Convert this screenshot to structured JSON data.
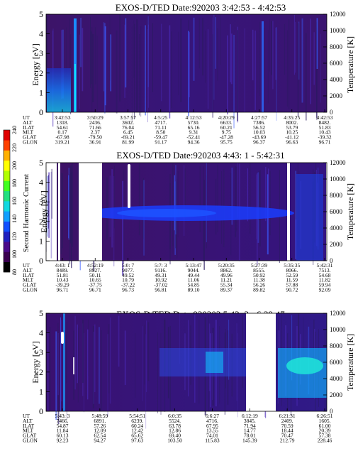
{
  "colorbar": {
    "label": "Second Harmonic Current",
    "ticks": [
      "240",
      "220",
      "200",
      "180",
      "160",
      "140",
      "120",
      "100",
      "80"
    ],
    "colors": [
      "#000000",
      "#3a0050",
      "#4a0a8a",
      "#2020c0",
      "#1050ff",
      "#10a0ff",
      "#10d8e0",
      "#20e080",
      "#40ff20",
      "#b0ff00",
      "#ffff00",
      "#ffb000",
      "#ff4000",
      "#e00000"
    ]
  },
  "chart_data": [
    {
      "type": "heatmap",
      "title": "EXOS-D/TED   Date:920203   3:42:53 - 4:42:53",
      "ylabel": "Energy [eV]",
      "ylabel_right": "Temperature [K]",
      "ylim": [
        0,
        5
      ],
      "ylim_right": [
        0,
        12000
      ],
      "yticks": [
        "0",
        "1",
        "2",
        "3",
        "4",
        "5"
      ],
      "yticks_right": [
        "0",
        "2000",
        "4000",
        "6000",
        "8000",
        "10000",
        "12000"
      ],
      "ephemeris_labels": [
        "UT",
        "ALT",
        "ILAT",
        "MLT",
        "GLAT",
        "GLON"
      ],
      "ephemeris": [
        [
          "3:42:53",
          "1318.",
          "54.61",
          "0.17",
          "-67.98",
          "319.21"
        ],
        [
          "3:50:29",
          "2436.",
          "71.66",
          "2.37",
          "-79.50",
          "36.91"
        ],
        [
          "3:57:57",
          "3602.",
          "76.04",
          "6.45",
          "-69.21",
          "81.99"
        ],
        [
          "4:5:25",
          "4717.",
          "71.11",
          "8.50",
          "-59.47",
          "91.17"
        ],
        [
          "4:12:53",
          "5730.",
          "65.16",
          "9.31",
          "-52.41",
          "94.36"
        ],
        [
          "4:20:29",
          "6633.",
          "60.21",
          "9.75",
          "-47.28",
          "95.75"
        ],
        [
          "4:27:57",
          "7386.",
          "56.52",
          "10.03",
          "-43.69",
          "96.37"
        ],
        [
          "4:35:25",
          "8002.",
          "53.79",
          "10.25",
          "-41.12",
          "96.63"
        ],
        [
          "4:42:53",
          "8482.",
          "51.83",
          "10.43",
          "-39.32",
          "96.71"
        ]
      ]
    },
    {
      "type": "heatmap",
      "title": "EXOS-D/TED   Date:920203  4:43: 1 - 5:42:31",
      "ylabel": "Energy [eV]",
      "ylabel_right": "Temperature [K]",
      "ylim": [
        0,
        5
      ],
      "ylim_right": [
        0,
        12000
      ],
      "yticks": [
        "0",
        "1",
        "2",
        "3",
        "4",
        "5"
      ],
      "yticks_right": [
        "0",
        "2000",
        "4000",
        "6000",
        "8000",
        "10000",
        "12000"
      ],
      "ephemeris_labels": [
        "UT",
        "ALT",
        "ILAT",
        "MLT",
        "GLAT",
        "GLON"
      ],
      "ephemeris": [
        [
          "4:43: 1",
          "8489.",
          "51.81",
          "10.43",
          "-39.29",
          "96.71"
        ],
        [
          "4:52:19",
          "8927.",
          "50.11",
          "10.65",
          "-37.75",
          "96.71"
        ],
        [
          "5:0: 7",
          "9077.",
          "49.52",
          "10.79",
          "-37.22",
          "96.73"
        ],
        [
          "5:7: 3",
          "9116.",
          "49.31",
          "10.92",
          "-37.02",
          "96.81"
        ],
        [
          "5:13:47",
          "9044.",
          "49.44",
          "11.06",
          "54.85",
          "89.10"
        ],
        [
          "5:20:35",
          "8862.",
          "49.96",
          "11.21",
          "55.34",
          "89.37"
        ],
        [
          "5:27:39",
          "8555.",
          "50.92",
          "11.38",
          "56.26",
          "89.82"
        ],
        [
          "5:35:35",
          "8066.",
          "52.59",
          "11.59",
          "57.88",
          "90.72"
        ],
        [
          "5:42:31",
          "7513.",
          "54.68",
          "11.82",
          "59.94",
          "92.09"
        ]
      ]
    },
    {
      "type": "heatmap",
      "title": "EXOS-D/TED   Date:920203   5:43: 3 - 6:29:47",
      "ylabel": "Energy [eV]",
      "ylabel_right": "Temperature [K]",
      "ylim": [
        0,
        5
      ],
      "ylim_right": [
        0,
        12000
      ],
      "yticks": [
        "0",
        "1",
        "2",
        "3",
        "4",
        "5"
      ],
      "yticks_right": [
        "0",
        "2000",
        "4000",
        "6000",
        "8000",
        "10000",
        "12000"
      ],
      "ephemeris_labels": [
        "UT",
        "ALT",
        "ILAT",
        "MLT",
        "GLAT",
        "GLON"
      ],
      "ephemeris": [
        [
          "5:43: 3",
          "7466.",
          "54.87",
          "11.84",
          "60.13",
          "92.23"
        ],
        [
          "5:48:59",
          "6891.",
          "57.26",
          "12.09",
          "62.54",
          "94.27"
        ],
        [
          "5:54:51",
          "6239.",
          "60.24",
          "12.42",
          "65.62",
          "97.63"
        ],
        [
          "6:0:35",
          "5524.",
          "63.78",
          "12.86",
          "69.40",
          "103.50"
        ],
        [
          "6:6:27",
          "4716.",
          "67.95",
          "13.55",
          "74.01",
          "115.83"
        ],
        [
          "6:12:19",
          "3845.",
          "71.94",
          "14.77",
          "78.01",
          "145.39"
        ],
        [
          "6:21:31",
          "2409.",
          "70.59",
          "18.44",
          "70.47",
          "212.79"
        ],
        [
          "6:26:51",
          "1605.",
          "61.00",
          "20.39",
          "57.38",
          "228.46"
        ]
      ]
    }
  ]
}
